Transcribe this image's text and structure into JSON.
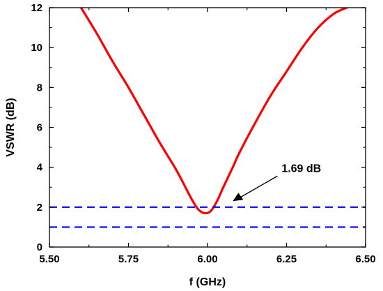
{
  "chart_data": {
    "type": "line",
    "xlabel": "f (GHz)",
    "ylabel": "VSWR (dB)",
    "xlim": [
      5.5,
      6.5
    ],
    "ylim": [
      0,
      12
    ],
    "xticks": [
      "5.50",
      "5.75",
      "6.00",
      "6.25",
      "6.50"
    ],
    "yticks": [
      "0",
      "2",
      "4",
      "6",
      "8",
      "10",
      "12"
    ],
    "grid": false,
    "series": [
      {
        "color": "#ff0000",
        "style": "solid",
        "x": [
          5.6,
          5.65,
          5.7,
          5.75,
          5.8,
          5.85,
          5.9,
          5.93,
          5.95,
          5.97,
          5.99,
          6.01,
          6.03,
          6.05,
          6.08,
          6.1,
          6.15,
          6.2,
          6.25,
          6.3,
          6.35,
          6.4,
          6.44
        ],
        "y": [
          12.0,
          10.7,
          9.3,
          8.0,
          6.6,
          5.2,
          3.9,
          3.0,
          2.4,
          1.9,
          1.7,
          1.8,
          2.3,
          3.0,
          4.0,
          4.7,
          6.2,
          7.6,
          8.8,
          10.0,
          11.0,
          11.7,
          12.0
        ]
      },
      {
        "color": "#0000ff",
        "style": "dashed",
        "x": [
          5.5,
          6.5
        ],
        "y": [
          2,
          2
        ]
      },
      {
        "color": "#0000ff",
        "style": "dashed",
        "x": [
          5.5,
          6.5
        ],
        "y": [
          1,
          1
        ]
      }
    ],
    "annotations": [
      {
        "text": "1.69 dB",
        "x": 6.08,
        "y": 2.3
      }
    ]
  }
}
